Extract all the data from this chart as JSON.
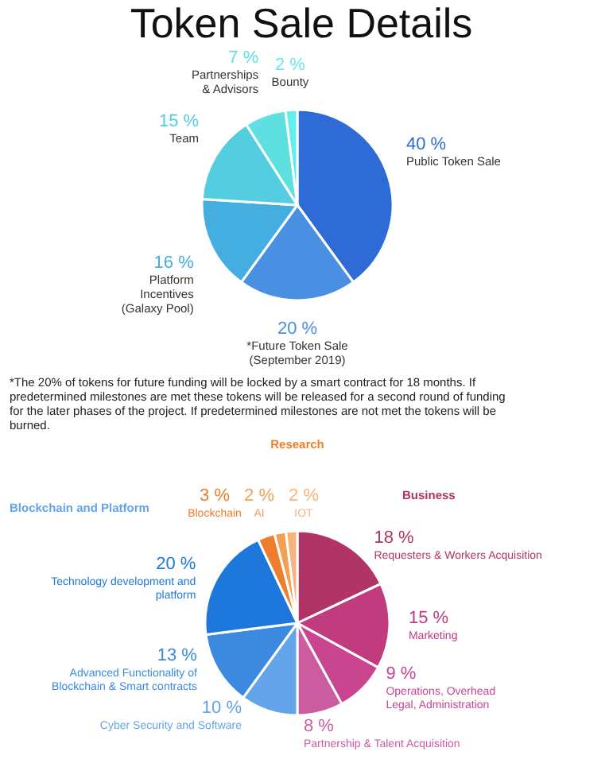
{
  "chart_data": [
    {
      "type": "pie",
      "title": "Token Sale Details",
      "categories": [
        "Public Token Sale",
        "*Future Token Sale\n(September 2019)",
        "Platform\nIncentives\n(Galaxy Pool)",
        "Team",
        "Partnerships\n& Advisors",
        "Bounty"
      ],
      "values": [
        40,
        20,
        16,
        15,
        7,
        2
      ],
      "value_labels": [
        "40 %",
        "20 %",
        "16 %",
        "15 %",
        "7 %",
        "2 %"
      ],
      "colors": [
        "#2e6bd6",
        "#4a90e2",
        "#44aee0",
        "#55cde0",
        "#5ee0e0",
        "#66ecef"
      ],
      "annotations": [
        "*The 20% of tokens for future funding will be locked by a smart contract for 18 months. If predetermined milestones are met these tokens will be released for a second round of funding for the later phases of the project. If predetermined milestones are not met the tokens will be burned."
      ]
    },
    {
      "type": "pie",
      "categories": [
        "Requesters & Workers Acquisition",
        "Marketing",
        "Operations, Overhead\nLegal, Administration",
        "Partnership & Talent Acquisition",
        "Cyber Security and Software",
        "Advanced Functionality of\nBlockchain & Smart contracts",
        "Technology development and\nplatform",
        "Blockchain",
        "AI",
        "IOT"
      ],
      "values": [
        18,
        15,
        9,
        8,
        10,
        13,
        20,
        3,
        2,
        2
      ],
      "value_labels": [
        "18 %",
        "15 %",
        "9 %",
        "8 %",
        "10 %",
        "13 %",
        "20 %",
        "3 %",
        "2 %",
        "2 %"
      ],
      "colors": [
        "#b03566",
        "#c03c7e",
        "#c94590",
        "#cc5ca0",
        "#63a4ea",
        "#3b8ae0",
        "#1e78dc",
        "#ee7d2c",
        "#f3a055",
        "#f6b47c"
      ],
      "annotations": [
        "Research",
        "Blockchain and Platform",
        "Business"
      ]
    }
  ]
}
